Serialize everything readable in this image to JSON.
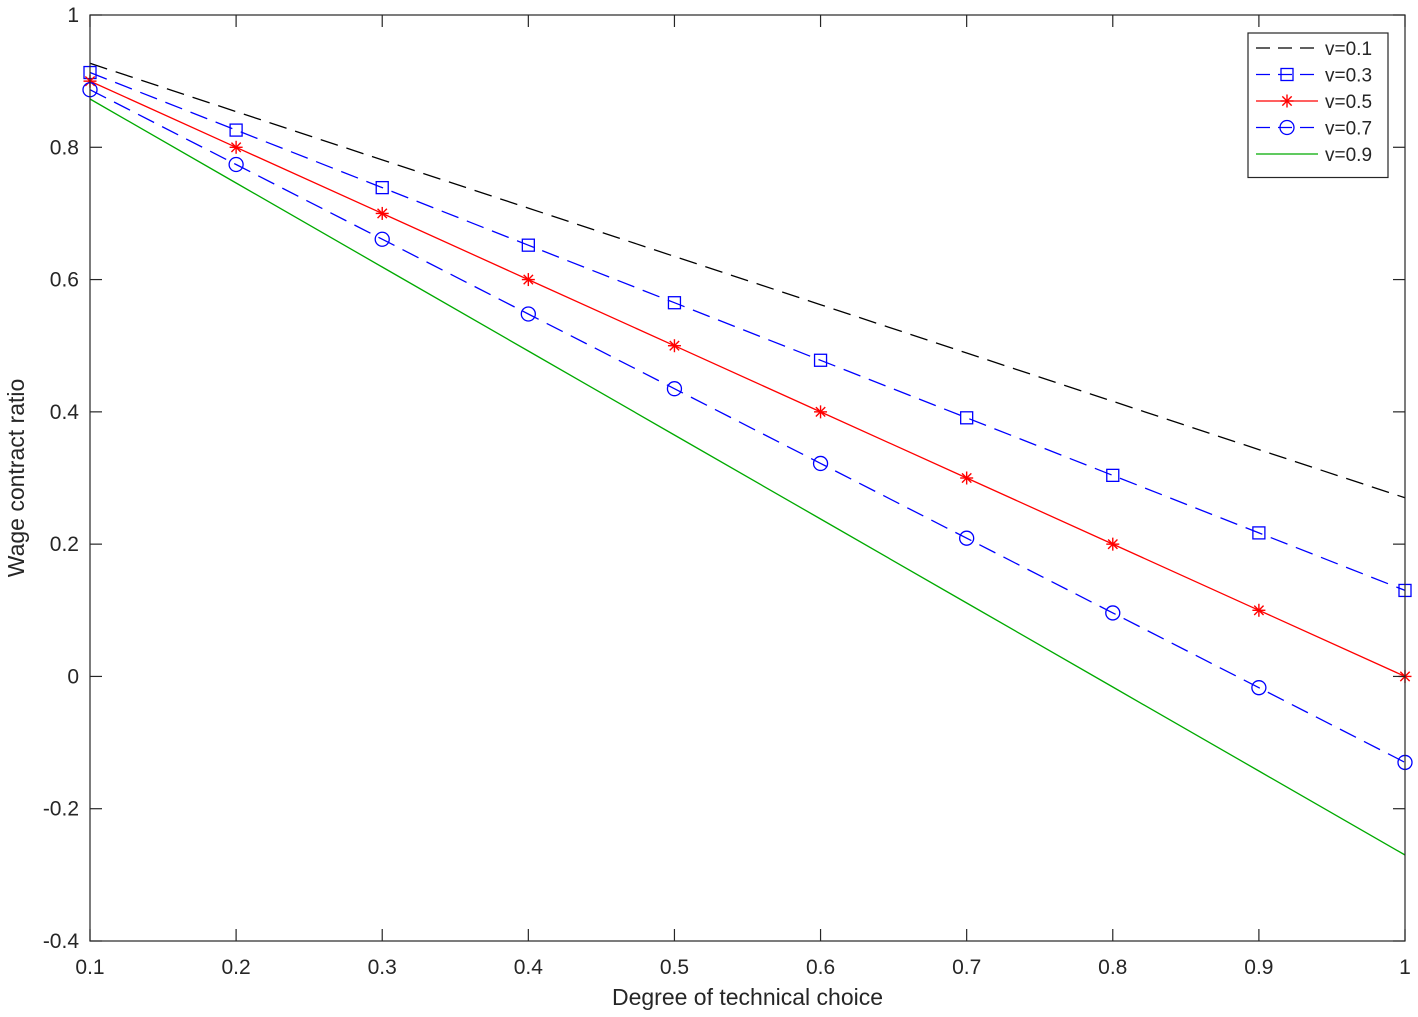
{
  "chart_data": {
    "type": "line",
    "title": "",
    "xlabel": "Degree of technical choice",
    "ylabel": "Wage contract ratio",
    "xlim": [
      0.1,
      1
    ],
    "ylim": [
      -0.4,
      1
    ],
    "xticks": [
      0.1,
      0.2,
      0.3,
      0.4,
      0.5,
      0.6,
      0.7,
      0.8,
      0.9,
      1
    ],
    "xtick_labels": [
      "0.1",
      "0.2",
      "0.3",
      "0.4",
      "0.5",
      "0.6",
      "0.7",
      "0.8",
      "0.9",
      "1"
    ],
    "yticks": [
      -0.4,
      -0.2,
      0,
      0.2,
      0.4,
      0.6,
      0.8,
      1
    ],
    "ytick_labels": [
      "-0.4",
      "-0.2",
      "0",
      "0.2",
      "0.4",
      "0.6",
      "0.8",
      "1"
    ],
    "grid": false,
    "legend_position": "top-right",
    "x": [
      0.1,
      0.2,
      0.3,
      0.4,
      0.5,
      0.6,
      0.7,
      0.8,
      0.9,
      1.0
    ],
    "series": [
      {
        "name": "v=0.1",
        "color": "#000000",
        "dash": "dashed",
        "marker": "none",
        "values": [
          0.927,
          0.854,
          0.781,
          0.708,
          0.635,
          0.562,
          0.489,
          0.416,
          0.343,
          0.27
        ]
      },
      {
        "name": "v=0.3",
        "color": "#0000ff",
        "dash": "dashed",
        "marker": "square",
        "values": [
          0.913,
          0.826,
          0.739,
          0.652,
          0.565,
          0.478,
          0.391,
          0.304,
          0.217,
          0.13
        ]
      },
      {
        "name": "v=0.5",
        "color": "#ff0000",
        "dash": "solid",
        "marker": "asterisk",
        "values": [
          0.9,
          0.8,
          0.7,
          0.6,
          0.5,
          0.4,
          0.3,
          0.2,
          0.1,
          0.0
        ]
      },
      {
        "name": "v=0.7",
        "color": "#0000ff",
        "dash": "dashed",
        "marker": "circle",
        "values": [
          0.887,
          0.774,
          0.661,
          0.548,
          0.435,
          0.322,
          0.209,
          0.096,
          -0.017,
          -0.13
        ]
      },
      {
        "name": "v=0.9",
        "color": "#00aa00",
        "dash": "solid",
        "marker": "none",
        "values": [
          0.873,
          0.746,
          0.619,
          0.492,
          0.365,
          0.238,
          0.111,
          -0.016,
          -0.143,
          -0.27
        ]
      }
    ]
  }
}
